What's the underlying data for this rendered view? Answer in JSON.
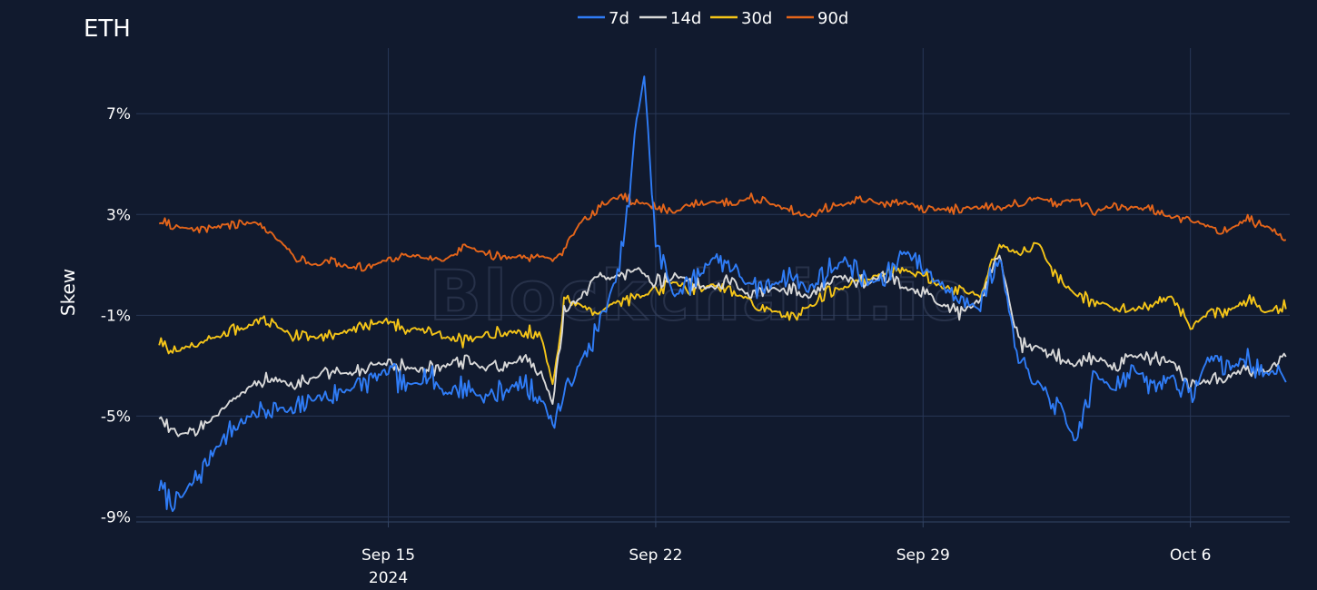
{
  "chart_data": {
    "type": "line",
    "title": "ETH",
    "xlabel": "",
    "ylabel": "Skew",
    "x_tick_labels": [
      "Sep 15",
      "Sep 22",
      "Sep 29",
      "Oct 6"
    ],
    "x_tick_days": [
      6,
      13,
      20,
      27
    ],
    "x_year_label": "2024",
    "xlim_days": [
      -0.6,
      29.6
    ],
    "y_ticks": [
      -9,
      -5,
      -1,
      3,
      7
    ],
    "y_tick_labels": [
      "-9%",
      "-5%",
      "-1%",
      "3%",
      "7%"
    ],
    "ylim": [
      -9.2,
      9.6
    ],
    "watermark": "Blockchain.io",
    "x_unit": "days since Sep 9 2024",
    "colors": {
      "7d": "#2f7cf6",
      "14d": "#d8d8d8",
      "30d": "#f5c518",
      "90d": "#e5651a"
    },
    "series": [
      {
        "name": "7d",
        "x": [
          0,
          0.3,
          0.6,
          0.9,
          1.2,
          1.5,
          2,
          2.5,
          3,
          3.5,
          4,
          4.5,
          5,
          5.5,
          6,
          6.5,
          7,
          7.5,
          8,
          8.5,
          9,
          9.5,
          10,
          10.3,
          10.6,
          11,
          11.5,
          12,
          12.3,
          12.5,
          12.7,
          13,
          13.5,
          14,
          14.5,
          15,
          15.5,
          16,
          16.5,
          17,
          17.5,
          18,
          18.5,
          19,
          19.5,
          20,
          20.5,
          21,
          21.5,
          22,
          22.5,
          23,
          23.5,
          24,
          24.5,
          25,
          25.5,
          26,
          26.5,
          27,
          27.5,
          28,
          28.5,
          29,
          29.5
        ],
        "values": [
          -7.8,
          -8.4,
          -8.2,
          -7.6,
          -7.0,
          -6.2,
          -5.4,
          -4.9,
          -4.6,
          -4.9,
          -4.3,
          -4.2,
          -3.9,
          -3.6,
          -3.2,
          -3.9,
          -3.3,
          -4.1,
          -3.8,
          -4.3,
          -4.0,
          -3.7,
          -4.3,
          -5.3,
          -4.2,
          -3.0,
          -1.5,
          0.6,
          3.4,
          6.8,
          8.5,
          1.8,
          -0.2,
          0.4,
          1.3,
          1.0,
          0.0,
          0.2,
          0.6,
          0.0,
          0.8,
          1.2,
          0.3,
          0.4,
          1.6,
          0.9,
          0.2,
          -0.4,
          -0.6,
          1.4,
          -3.0,
          -3.7,
          -4.6,
          -6.0,
          -3.4,
          -3.8,
          -3.1,
          -3.9,
          -3.4,
          -4.3,
          -2.6,
          -3.1,
          -2.7,
          -3.4,
          -3.2
        ]
      },
      {
        "name": "14d",
        "x": [
          0,
          0.5,
          1,
          1.5,
          2,
          2.5,
          3,
          3.5,
          4,
          4.5,
          5,
          5.5,
          6,
          6.5,
          7,
          7.5,
          8,
          8.5,
          9,
          9.5,
          10,
          10.3,
          10.6,
          11,
          11.5,
          12,
          12.5,
          13,
          13.5,
          14,
          14.5,
          15,
          15.5,
          16,
          16.5,
          17,
          17.5,
          18,
          18.5,
          19,
          19.5,
          20,
          20.5,
          21,
          21.5,
          22,
          22.5,
          23,
          23.5,
          24,
          24.5,
          25,
          25.5,
          26,
          26.5,
          27,
          27.5,
          28,
          28.5,
          29,
          29.5
        ],
        "values": [
          -5.0,
          -5.7,
          -5.5,
          -5.0,
          -4.3,
          -3.7,
          -3.5,
          -3.7,
          -3.5,
          -3.2,
          -3.3,
          -3.0,
          -2.9,
          -3.1,
          -3.2,
          -3.0,
          -2.8,
          -3.1,
          -3.0,
          -2.7,
          -3.3,
          -4.5,
          -0.9,
          -0.3,
          0.4,
          0.5,
          0.8,
          0.3,
          0.6,
          0.2,
          0.1,
          0.3,
          -0.3,
          0.0,
          0.1,
          -0.3,
          0.5,
          0.5,
          0.3,
          0.6,
          0.1,
          -0.2,
          -0.6,
          -0.9,
          -0.4,
          1.4,
          -2.1,
          -2.3,
          -2.6,
          -3.0,
          -2.6,
          -3.1,
          -2.6,
          -2.7,
          -2.8,
          -3.7,
          -3.6,
          -3.4,
          -3.1,
          -3.2,
          -2.6
        ]
      },
      {
        "name": "30d",
        "x": [
          0,
          0.5,
          1,
          1.5,
          2,
          2.5,
          3,
          3.5,
          4,
          4.5,
          5,
          5.5,
          6,
          6.5,
          7,
          7.5,
          8,
          8.5,
          9,
          9.5,
          10,
          10.3,
          10.6,
          11,
          11.5,
          12,
          12.5,
          13,
          13.5,
          14,
          14.5,
          15,
          15.5,
          16,
          16.5,
          17,
          17.5,
          18,
          18.5,
          19,
          19.5,
          20,
          20.5,
          21,
          21.5,
          22,
          22.5,
          23,
          23.5,
          24,
          24.5,
          25,
          25.5,
          26,
          26.5,
          27,
          27.5,
          28,
          28.5,
          29,
          29.5
        ],
        "values": [
          -2.1,
          -2.4,
          -2.1,
          -1.9,
          -1.6,
          -1.3,
          -1.3,
          -1.8,
          -1.9,
          -1.8,
          -1.6,
          -1.4,
          -1.2,
          -1.6,
          -1.5,
          -1.9,
          -2.0,
          -1.8,
          -1.7,
          -1.6,
          -1.8,
          -3.8,
          -0.4,
          -0.6,
          -0.8,
          -0.5,
          -0.3,
          0.0,
          0.3,
          0.0,
          0.2,
          -0.1,
          -0.4,
          -0.8,
          -1.1,
          -0.7,
          -0.1,
          0.1,
          0.4,
          0.7,
          0.8,
          0.6,
          0.1,
          0.0,
          -0.2,
          1.8,
          1.4,
          1.9,
          0.5,
          -0.2,
          -0.5,
          -0.6,
          -0.8,
          -0.5,
          -0.3,
          -1.4,
          -0.9,
          -0.8,
          -0.4,
          -0.9,
          -0.6
        ]
      },
      {
        "name": "90d",
        "x": [
          0,
          0.5,
          1,
          1.5,
          2,
          2.5,
          3,
          3.5,
          4,
          4.5,
          5,
          5.5,
          6,
          6.5,
          7,
          7.5,
          8,
          8.5,
          9,
          9.5,
          10,
          10.3,
          10.6,
          11,
          11.5,
          12,
          12.5,
          13,
          13.5,
          14,
          14.5,
          15,
          15.5,
          16,
          16.5,
          17,
          17.5,
          18,
          18.5,
          19,
          19.5,
          20,
          20.5,
          21,
          21.5,
          22,
          22.5,
          23,
          23.5,
          24,
          24.5,
          25,
          25.5,
          26,
          26.5,
          27,
          27.5,
          28,
          28.5,
          29,
          29.5
        ],
        "values": [
          2.7,
          2.5,
          2.4,
          2.5,
          2.6,
          2.7,
          2.2,
          1.4,
          1.0,
          1.1,
          0.9,
          1.0,
          1.2,
          1.4,
          1.3,
          1.2,
          1.7,
          1.5,
          1.3,
          1.3,
          1.4,
          1.2,
          1.6,
          2.6,
          3.3,
          3.7,
          3.5,
          3.3,
          3.1,
          3.4,
          3.5,
          3.4,
          3.7,
          3.4,
          3.2,
          2.9,
          3.3,
          3.4,
          3.6,
          3.4,
          3.5,
          3.2,
          3.2,
          3.2,
          3.3,
          3.2,
          3.5,
          3.7,
          3.4,
          3.6,
          3.1,
          3.4,
          3.3,
          3.2,
          2.9,
          2.8,
          2.5,
          2.4,
          2.8,
          2.5,
          2.1
        ]
      }
    ]
  }
}
